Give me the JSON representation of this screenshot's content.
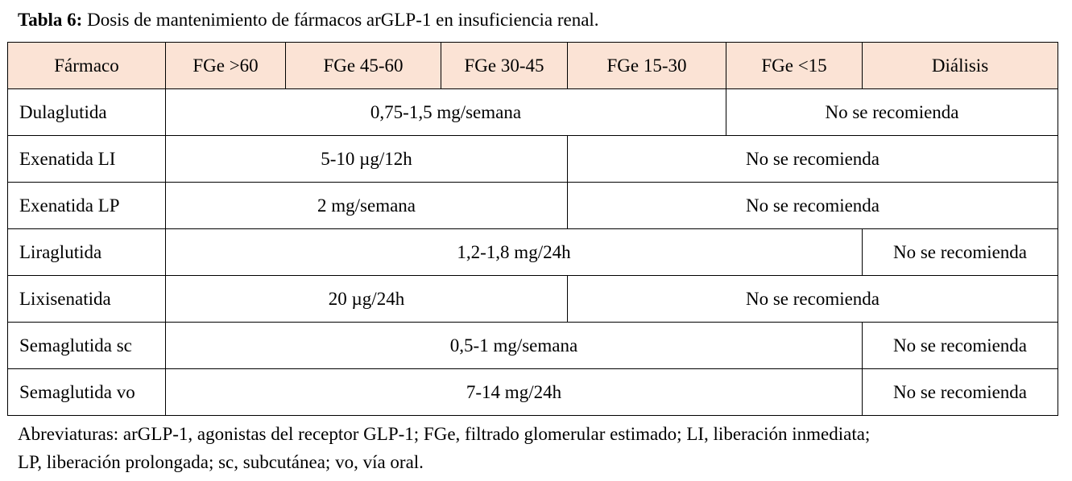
{
  "caption": {
    "label": "Tabla 6:",
    "text": " Dosis de mantenimiento de fármacos arGLP-1 en insuficiencia renal."
  },
  "table": {
    "headers": [
      "Fármaco",
      "FGe >60",
      "FGe 45-60",
      "FGe 30-45",
      "FGe 15-30",
      "FGe <15",
      "Diálisis"
    ],
    "rows": [
      {
        "drug": "Dulaglutida",
        "dose": "0,75-1,5 mg/semana",
        "not_recommended": "No se recomienda"
      },
      {
        "drug": "Exenatida LI",
        "dose": "5-10 µg/12h",
        "not_recommended": "No se recomienda"
      },
      {
        "drug": "Exenatida LP",
        "dose": "2 mg/semana",
        "not_recommended": "No se recomienda"
      },
      {
        "drug": "Liraglutida",
        "dose": "1,2-1,8 mg/24h",
        "not_recommended": "No se recomienda"
      },
      {
        "drug": "Lixisenatida",
        "dose": "20 µg/24h",
        "not_recommended": "No se recomienda"
      },
      {
        "drug": "Semaglutida sc",
        "dose": "0,5-1 mg/semana",
        "not_recommended": "No se recomienda"
      },
      {
        "drug": "Semaglutida vo",
        "dose": "7-14 mg/24h",
        "not_recommended": "No se recomienda"
      }
    ]
  },
  "footnote": {
    "line1": "Abreviaturas: arGLP-1, agonistas del receptor GLP-1; FGe, filtrado glomerular estimado; LI, liberación inmediata;",
    "line2": "LP, liberación prolongada; sc, subcutánea; vo, vía oral."
  },
  "colors": {
    "header_background": "#fbe3d5",
    "border": "#000000"
  }
}
